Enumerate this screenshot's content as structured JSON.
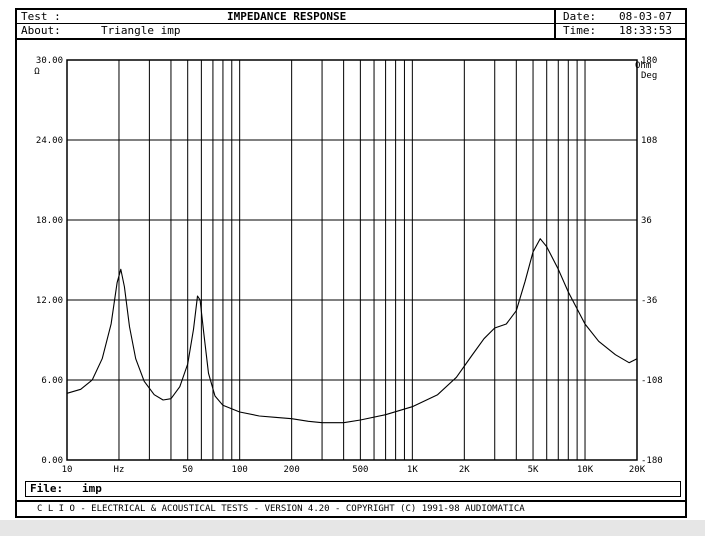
{
  "header": {
    "test_label": "Test :",
    "title": "IMPEDANCE RESPONSE",
    "about_label": "About:",
    "about_value": "Triangle imp",
    "date_label": "Date:",
    "date_value": "08-03-07",
    "time_label": "Time:",
    "time_value": "18:33:53"
  },
  "file_bar": {
    "label": "File:",
    "value": "imp"
  },
  "footer_text": "C L I O  -  ELECTRICAL & ACOUSTICAL TESTS  -  VERSION 4.20  -  COPYRIGHT (C) 1991-98 AUDIOMATICA",
  "chart_data": {
    "type": "line",
    "xscale": "log",
    "xlim": [
      10,
      20000
    ],
    "left_axis": {
      "unit": "Ω",
      "ylim": [
        0,
        30
      ],
      "ticks": [
        "0.00",
        "6.00",
        "12.00",
        "18.00",
        "24.00",
        "30.00"
      ]
    },
    "right_axis": {
      "unit_top": "Ohm",
      "unit_bottom": "Deg",
      "ylim": [
        -180,
        180
      ],
      "ticks": [
        "-180",
        "-108",
        "-36",
        "36",
        "108",
        "180"
      ]
    },
    "x_ticks": [
      {
        "v": 10,
        "label": "10"
      },
      {
        "v": 20,
        "label": "Hz"
      },
      {
        "v": 50,
        "label": "50"
      },
      {
        "v": 100,
        "label": "100"
      },
      {
        "v": 200,
        "label": "200"
      },
      {
        "v": 500,
        "label": "500"
      },
      {
        "v": 1000,
        "label": "1K"
      },
      {
        "v": 2000,
        "label": "2K"
      },
      {
        "v": 5000,
        "label": "5K"
      },
      {
        "v": 10000,
        "label": "10K"
      },
      {
        "v": 20000,
        "label": "20K"
      }
    ],
    "grid": true,
    "series": [
      {
        "color": "#000000",
        "points": [
          [
            10,
            5.0
          ],
          [
            12,
            5.3
          ],
          [
            14,
            6.0
          ],
          [
            16,
            7.6
          ],
          [
            18,
            10.2
          ],
          [
            19.5,
            13.3
          ],
          [
            20.5,
            14.3
          ],
          [
            21.5,
            13.0
          ],
          [
            23,
            10.0
          ],
          [
            25,
            7.6
          ],
          [
            28,
            5.9
          ],
          [
            32,
            4.9
          ],
          [
            36,
            4.5
          ],
          [
            40,
            4.6
          ],
          [
            45,
            5.5
          ],
          [
            50,
            7.2
          ],
          [
            54,
            9.8
          ],
          [
            57,
            12.3
          ],
          [
            59,
            12.0
          ],
          [
            62,
            9.5
          ],
          [
            66,
            6.5
          ],
          [
            72,
            4.8
          ],
          [
            80,
            4.1
          ],
          [
            100,
            3.6
          ],
          [
            130,
            3.3
          ],
          [
            160,
            3.2
          ],
          [
            200,
            3.1
          ],
          [
            250,
            2.9
          ],
          [
            300,
            2.8
          ],
          [
            400,
            2.8
          ],
          [
            500,
            3.0
          ],
          [
            700,
            3.4
          ],
          [
            1000,
            4.0
          ],
          [
            1400,
            4.9
          ],
          [
            1800,
            6.2
          ],
          [
            2200,
            7.8
          ],
          [
            2600,
            9.1
          ],
          [
            3000,
            9.9
          ],
          [
            3500,
            10.2
          ],
          [
            4000,
            11.2
          ],
          [
            4500,
            13.4
          ],
          [
            5000,
            15.6
          ],
          [
            5500,
            16.6
          ],
          [
            6000,
            16.0
          ],
          [
            7000,
            14.3
          ],
          [
            8000,
            12.6
          ],
          [
            10000,
            10.2
          ],
          [
            12000,
            8.9
          ],
          [
            15000,
            7.9
          ],
          [
            18000,
            7.3
          ],
          [
            20000,
            7.6
          ]
        ]
      }
    ]
  }
}
